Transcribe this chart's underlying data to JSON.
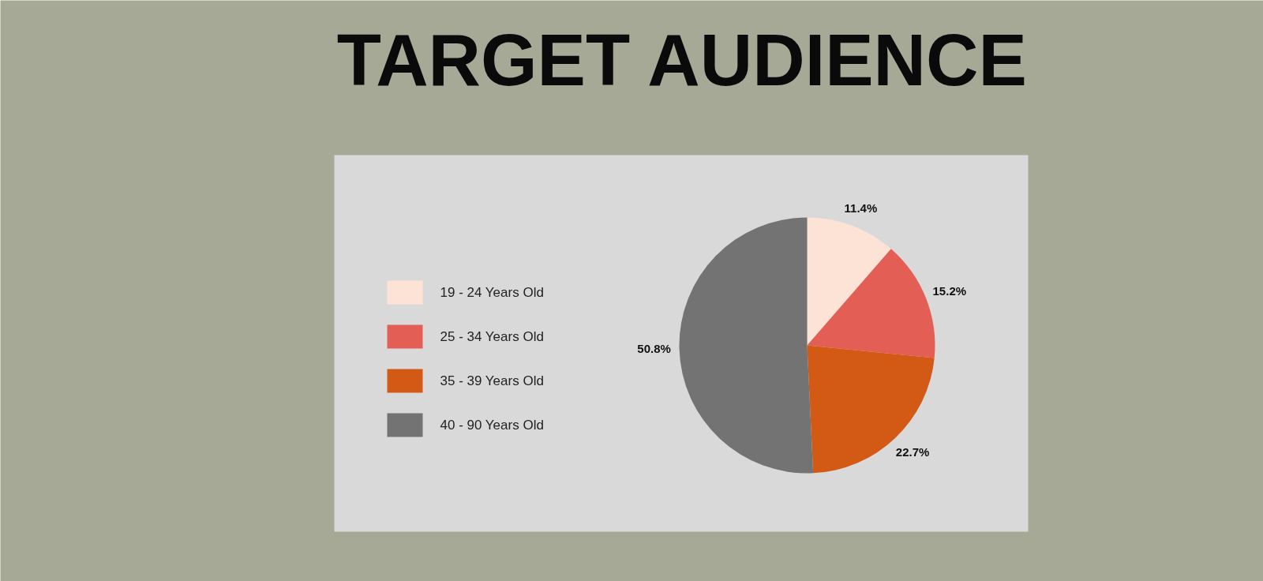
{
  "chart_data": {
    "type": "pie",
    "title": "TARGET AUDIENCE",
    "categories": [
      "19 - 24 Years Old",
      "25 - 34 Years Old",
      "35 - 39 Years Old",
      "40 - 90 Years Old"
    ],
    "values": [
      11.4,
      15.2,
      22.7,
      50.8
    ],
    "colors": [
      "#fde3d6",
      "#e35f55",
      "#d35a14",
      "#737373"
    ],
    "value_labels": [
      "11.4%",
      "15.2%",
      "22.7%",
      "50.8%"
    ],
    "legend": "left"
  }
}
